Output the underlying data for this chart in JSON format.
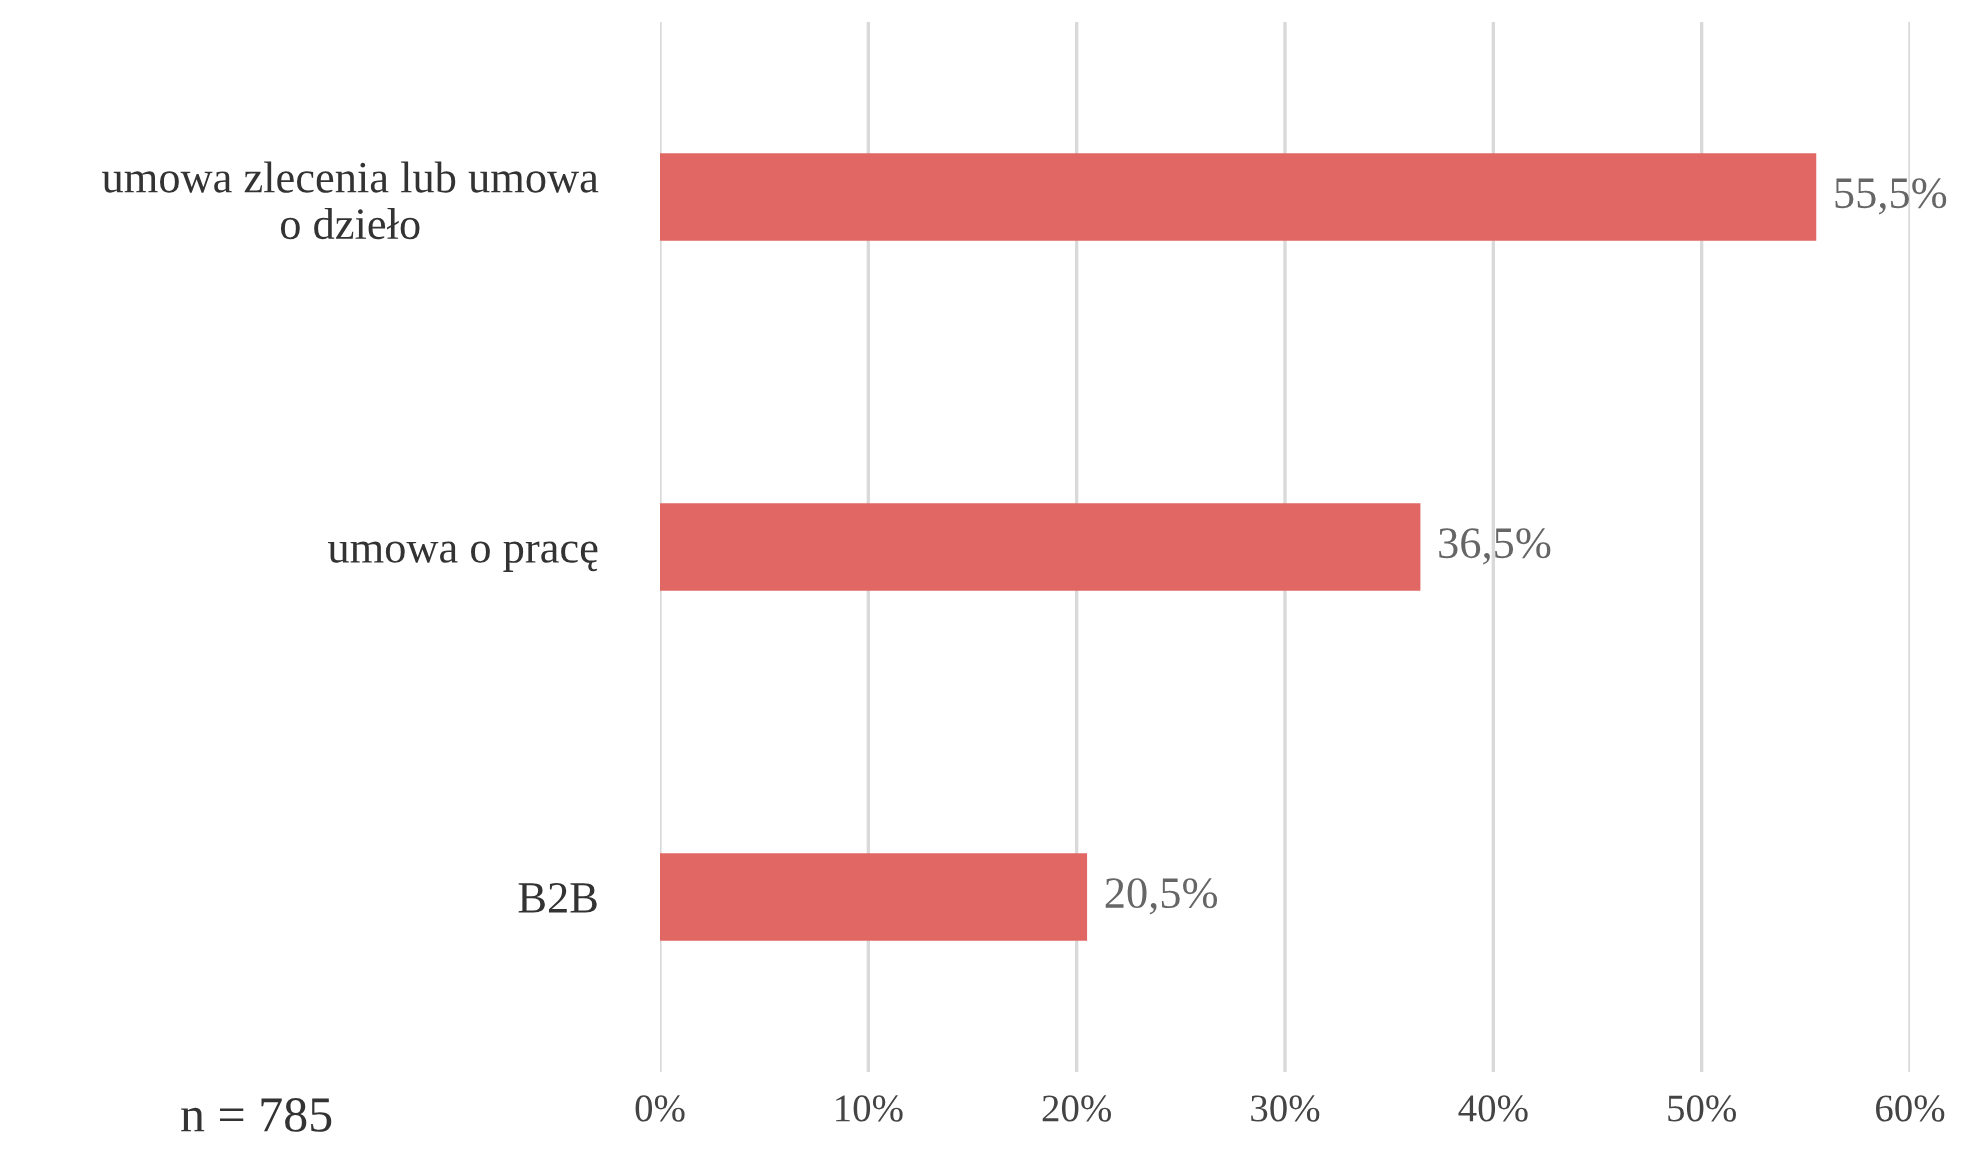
{
  "chart_data": {
    "type": "bar",
    "orientation": "horizontal",
    "categories": [
      "umowa zlecenia lub umowa\no dzieło",
      "umowa o pracę",
      "B2B"
    ],
    "values": [
      55.5,
      36.5,
      20.5
    ],
    "color": "#e06763",
    "value_labels": [
      "55,5%",
      "36,5%",
      "20,5%"
    ],
    "xlim": [
      0,
      60
    ],
    "xticks": [
      {
        "value": 0,
        "label": "0%"
      },
      {
        "value": 10,
        "label": "10%"
      },
      {
        "value": 20,
        "label": "20%"
      },
      {
        "value": 30,
        "label": "30%"
      },
      {
        "value": 40,
        "label": "40%"
      },
      {
        "value": 50,
        "label": "50%"
      },
      {
        "value": 60,
        "label": "60%"
      }
    ],
    "grid": "x",
    "legend": false,
    "annotations": [
      "n = 785"
    ]
  }
}
